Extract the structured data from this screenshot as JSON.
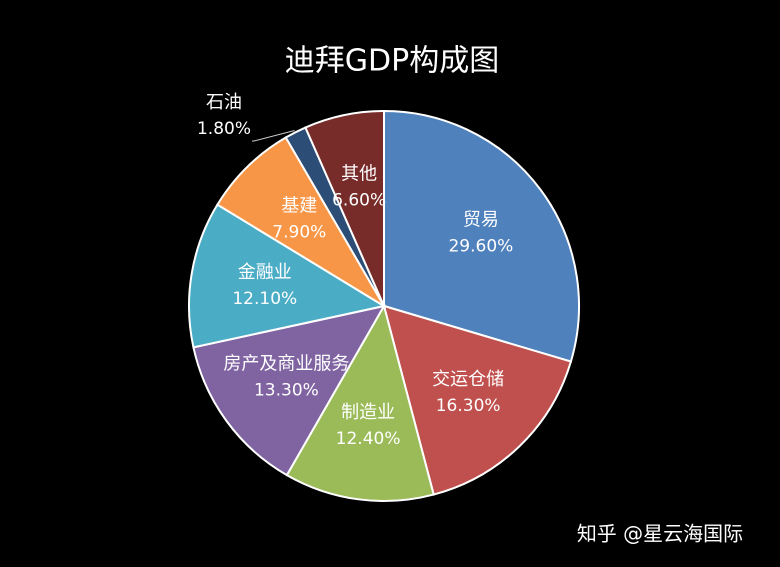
{
  "chart_data": {
    "type": "pie",
    "title": "迪拜GDP构成图",
    "categories": [
      "贸易",
      "交运仓储",
      "制造业",
      "房产及商业服务",
      "金融业",
      "基建",
      "石油",
      "其他"
    ],
    "values": [
      29.6,
      16.3,
      12.4,
      13.3,
      12.1,
      7.9,
      1.8,
      6.6
    ],
    "value_labels": [
      "29.60%",
      "16.30%",
      "12.40%",
      "13.30%",
      "12.10%",
      "7.90%",
      "1.80%",
      "6.60%"
    ],
    "colors": [
      "#4f81bd",
      "#c0504d",
      "#9bbb59",
      "#8064a2",
      "#4bacc6",
      "#f79646",
      "#2c4d75",
      "#772c2a"
    ],
    "watermark": "知乎 @星云海国际"
  }
}
